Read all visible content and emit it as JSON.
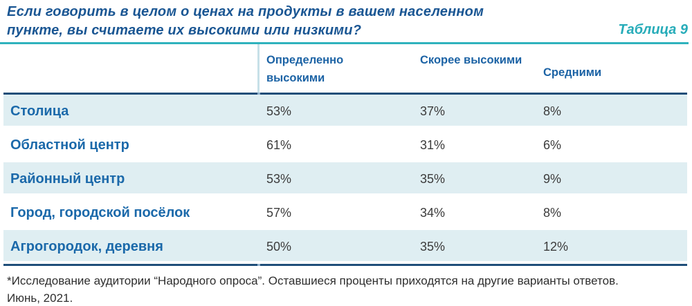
{
  "title": {
    "line1": "Если говорить в целом о ценах на продукты в вашем населенном",
    "line2": "пункте, вы считаете их высокими или низкими?",
    "table_label": "Таблица 9"
  },
  "table": {
    "columns": [
      "Определенно высокими",
      "Скорее высокими",
      "Средними"
    ],
    "rows": [
      {
        "label": "Столица",
        "values": [
          "53%",
          "37%",
          "8%"
        ]
      },
      {
        "label": "Областной центр",
        "values": [
          "61%",
          "31%",
          "6%"
        ]
      },
      {
        "label": "Районный центр",
        "values": [
          "53%",
          "35%",
          "9%"
        ]
      },
      {
        "label": "Город, городской посёлок",
        "values": [
          "57%",
          "34%",
          "8%"
        ]
      },
      {
        "label": "Агрогородок, деревня",
        "values": [
          "50%",
          "35%",
          "12%"
        ]
      }
    ]
  },
  "footnote": {
    "line1": "*Исследование аудитории “Народного опроса”. Оставшиеся проценты приходятся на другие варианты ответов.",
    "line2": "Июнь, 2021."
  },
  "colors": {
    "title_blue": "#1A5693",
    "accent_teal": "#27ACB9",
    "navy_border": "#1F4E79",
    "row_label_blue": "#1B69AA",
    "header_blue": "#1C63A5",
    "striped_row_bg": "#DFEEF2",
    "value_text": "#3C3C3C"
  },
  "chart_data": {
    "type": "table",
    "title": "Если говорить в целом о ценах на продукты в вашем населенном пункте, вы считаете их высокими или низкими?",
    "table_label": "Таблица 9",
    "categories": [
      "Столица",
      "Областной центр",
      "Районный центр",
      "Город, городской посёлок",
      "Агрогородок, деревня"
    ],
    "series": [
      {
        "name": "Определенно высокими",
        "values": [
          53,
          61,
          53,
          57,
          50
        ]
      },
      {
        "name": "Скорее высокими",
        "values": [
          37,
          31,
          35,
          34,
          35
        ]
      },
      {
        "name": "Средними",
        "values": [
          8,
          6,
          9,
          8,
          12
        ]
      }
    ],
    "unit": "%",
    "footnote": "*Исследование аудитории “Народного опроса”. Оставшиеся проценты приходятся на другие варианты ответов. Июнь, 2021."
  }
}
